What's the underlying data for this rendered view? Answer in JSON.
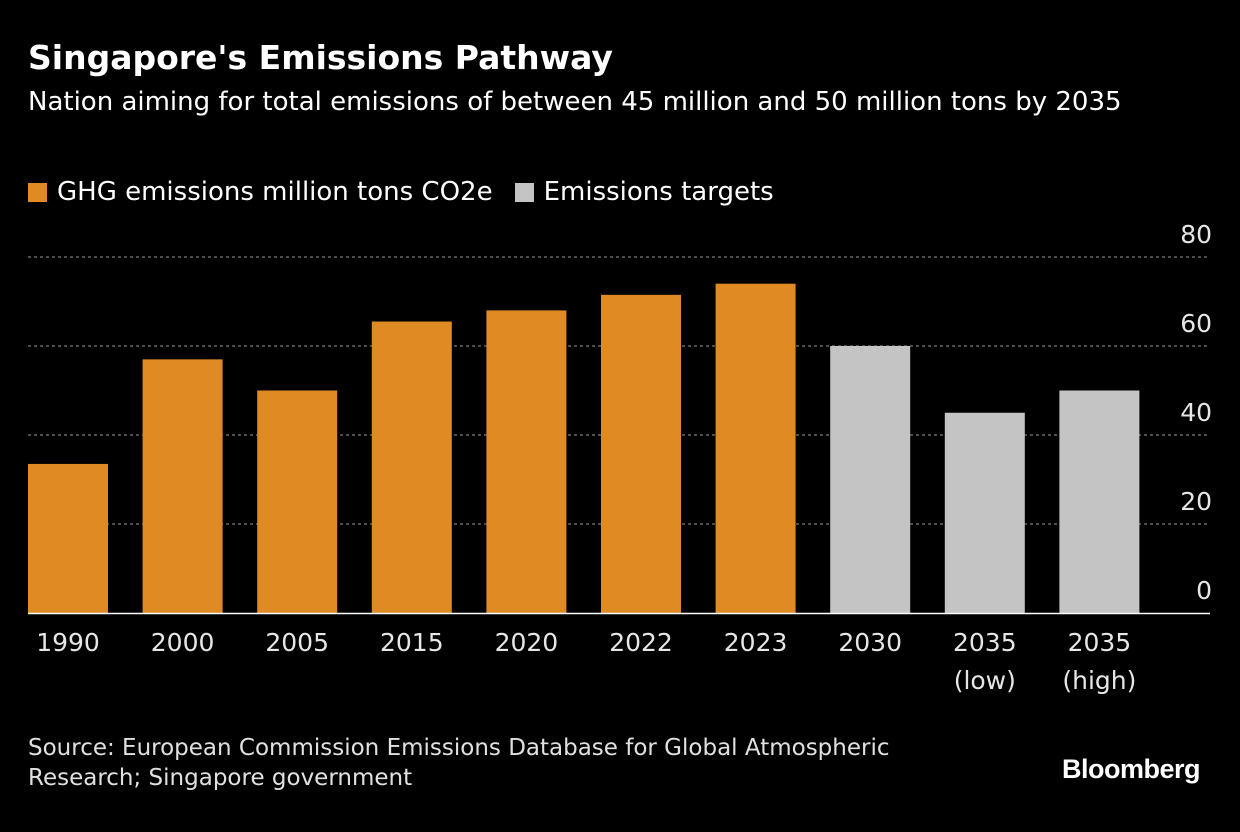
{
  "title": "Singapore's Emissions Pathway",
  "subtitle": "Nation aiming for total emissions of between 45 million and 50 million tons by 2035",
  "legend": [
    {
      "label": "GHG emissions million tons CO2e",
      "color": "#e08a24"
    },
    {
      "label": "Emissions targets",
      "color": "#c4c4c4"
    }
  ],
  "source": "Source: European Commission Emissions Database for Global Atmospheric Research; Singapore government",
  "brand": "Bloomberg",
  "colors": {
    "background": "#000000",
    "emissions": "#e08a24",
    "targets": "#c4c4c4",
    "gridline": "#7a7a7a",
    "text": "#ffffff"
  },
  "chart_data": {
    "type": "bar",
    "title": "Singapore's Emissions Pathway",
    "subtitle": "Nation aiming for total emissions of between 45 million and 50 million tons by 2035",
    "categories": [
      [
        "1990"
      ],
      [
        "2000"
      ],
      [
        "2005"
      ],
      [
        "2015"
      ],
      [
        "2020"
      ],
      [
        "2022"
      ],
      [
        "2023"
      ],
      [
        "2030"
      ],
      [
        "2035",
        "(low)"
      ],
      [
        "2035",
        "(high)"
      ]
    ],
    "series": [
      {
        "name": "GHG emissions million tons CO2e",
        "color": "#e08a24",
        "values": [
          33.5,
          57,
          50,
          65.5,
          68,
          71.5,
          74,
          null,
          null,
          null
        ]
      },
      {
        "name": "Emissions targets",
        "color": "#c4c4c4",
        "values": [
          null,
          null,
          null,
          null,
          null,
          null,
          null,
          60,
          45,
          50
        ]
      }
    ],
    "ylim": [
      0,
      80
    ],
    "yticks": [
      80,
      60,
      40,
      20,
      0
    ],
    "y_axis_side": "right",
    "grid": true,
    "legend_position": "top-left"
  }
}
